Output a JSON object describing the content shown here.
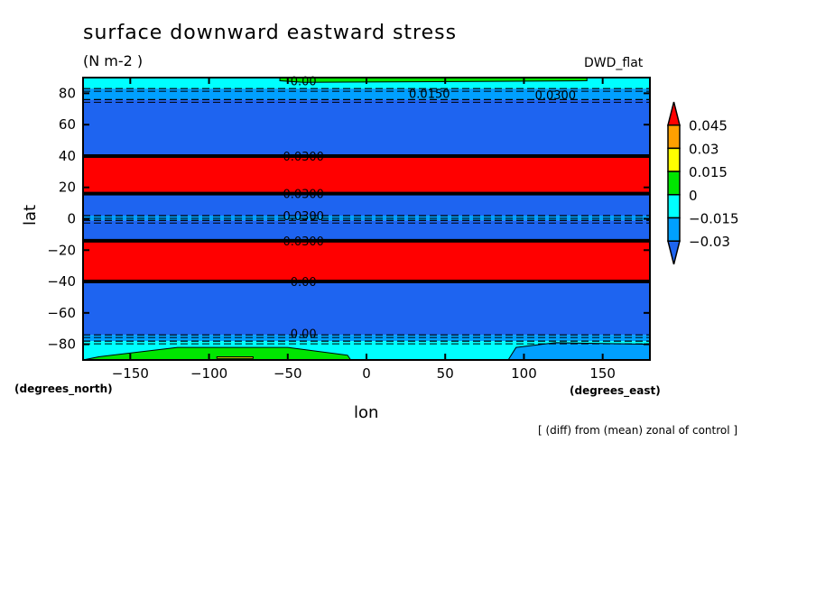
{
  "chart_data": {
    "type": "contour",
    "title": "surface downward eastward stress",
    "units": "(N m-2  )",
    "experiment": "DWD_flat",
    "note": "[ (diff) from (mean) zonal of control ]",
    "xlabel": "lon",
    "ylabel": "lat",
    "xunit": "(degrees_east)",
    "yunit": "(degrees_north)",
    "xlim": [
      -180,
      180
    ],
    "ylim": [
      -90,
      90
    ],
    "xticks": [
      -150,
      -100,
      -50,
      0,
      50,
      100,
      150
    ],
    "yticks": [
      -80,
      -60,
      -40,
      -20,
      0,
      20,
      40,
      60,
      80
    ],
    "colorbar": {
      "levels": [
        "-0.03",
        "-0.015",
        "0",
        "0.015",
        "0.03",
        "0.045"
      ],
      "colors": [
        "#1e64f0",
        "#00a0ff",
        "#00ffff",
        "#00e600",
        "#ffff00",
        "#ffa000",
        "#ff0000"
      ]
    },
    "zonal_bands": [
      {
        "lat": [
          83,
          90
        ],
        "level_index": 2
      },
      {
        "lat": [
          76,
          83
        ],
        "level_index": 1
      },
      {
        "lat": [
          40,
          76
        ],
        "level_index": 0
      },
      {
        "lat": [
          16,
          40
        ],
        "level_index": 6
      },
      {
        "lat": [
          2,
          16
        ],
        "level_index": 0
      },
      {
        "lat": [
          -1,
          2
        ],
        "level_index": 1
      },
      {
        "lat": [
          -14,
          -1
        ],
        "level_index": 0
      },
      {
        "lat": [
          -40,
          -14
        ],
        "level_index": 6
      },
      {
        "lat": [
          -74,
          -40
        ],
        "level_index": 0
      },
      {
        "lat": [
          -78,
          -74
        ],
        "level_index": 1
      },
      {
        "lat": [
          -90,
          -78
        ],
        "level_index": 2
      }
    ],
    "contour_labels": [
      "0.00",
      "0.0150",
      "0.0300",
      "0.0300",
      "0.0300",
      "0.0300",
      "0.0300",
      "0.00",
      "0.00"
    ]
  }
}
